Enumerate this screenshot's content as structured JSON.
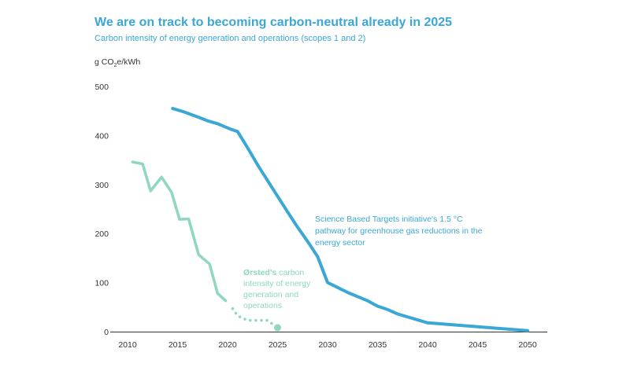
{
  "chart_data": {
    "type": "line",
    "title": "We are on track to becoming carbon-neutral already in 2025",
    "subtitle": "Carbon intensity of energy generation and operations (scopes 1 and 2)",
    "ylabel": {
      "prefix": "g CO",
      "sub": "2",
      "suffix": "e/kWh"
    },
    "xlim": [
      2008,
      2052
    ],
    "ylim": [
      0,
      500
    ],
    "x_ticks": [
      2010,
      2015,
      2020,
      2025,
      2030,
      2035,
      2040,
      2045,
      2050
    ],
    "y_ticks": [
      0,
      100,
      200,
      300,
      400,
      500
    ],
    "grid": false,
    "colors": {
      "sbti": "#3ba7d4",
      "orsted": "#8fd6c3",
      "axis": "#333333"
    },
    "series": [
      {
        "key": "sbti",
        "name": "Science Based Targets initiative's 1.5 °C pathway for greenhouse gas reductions in the energy sector",
        "style": "solid",
        "points": [
          [
            2014.5,
            455
          ],
          [
            2015.5,
            449
          ],
          [
            2017,
            438
          ],
          [
            2018,
            430
          ],
          [
            2019,
            424
          ],
          [
            2019.7,
            418
          ],
          [
            2020.3,
            413
          ],
          [
            2021,
            408
          ],
          [
            2022,
            375
          ],
          [
            2023,
            340
          ],
          [
            2024,
            308
          ],
          [
            2025,
            276
          ],
          [
            2026,
            244
          ],
          [
            2027,
            213
          ],
          [
            2028,
            184
          ],
          [
            2029,
            153
          ],
          [
            2030,
            100
          ],
          [
            2032,
            80
          ],
          [
            2034,
            63
          ],
          [
            2035,
            52
          ],
          [
            2036,
            45
          ],
          [
            2037,
            36
          ],
          [
            2040,
            18
          ],
          [
            2045,
            10
          ],
          [
            2050,
            2
          ]
        ]
      },
      {
        "key": "orsted",
        "name": "Ørsted's carbon intensity of energy generation and operations",
        "name_bold": "Ørsted's",
        "name_rest": " carbon intensity of energy generation and operations",
        "style": "solid",
        "points": [
          [
            2010.5,
            346
          ],
          [
            2011.5,
            342
          ],
          [
            2012.3,
            287
          ],
          [
            2013.4,
            315
          ],
          [
            2014.4,
            284
          ],
          [
            2015.2,
            229
          ],
          [
            2016.1,
            230
          ],
          [
            2017.1,
            157
          ],
          [
            2018.2,
            138
          ],
          [
            2019,
            78
          ],
          [
            2019.8,
            63
          ]
        ]
      },
      {
        "key": "orsted_projection",
        "style": "dotted",
        "points": [
          [
            2020.5,
            47
          ],
          [
            2021,
            32
          ],
          [
            2022,
            23
          ],
          [
            2023,
            23
          ],
          [
            2024,
            23
          ],
          [
            2025,
            8
          ]
        ]
      }
    ]
  }
}
